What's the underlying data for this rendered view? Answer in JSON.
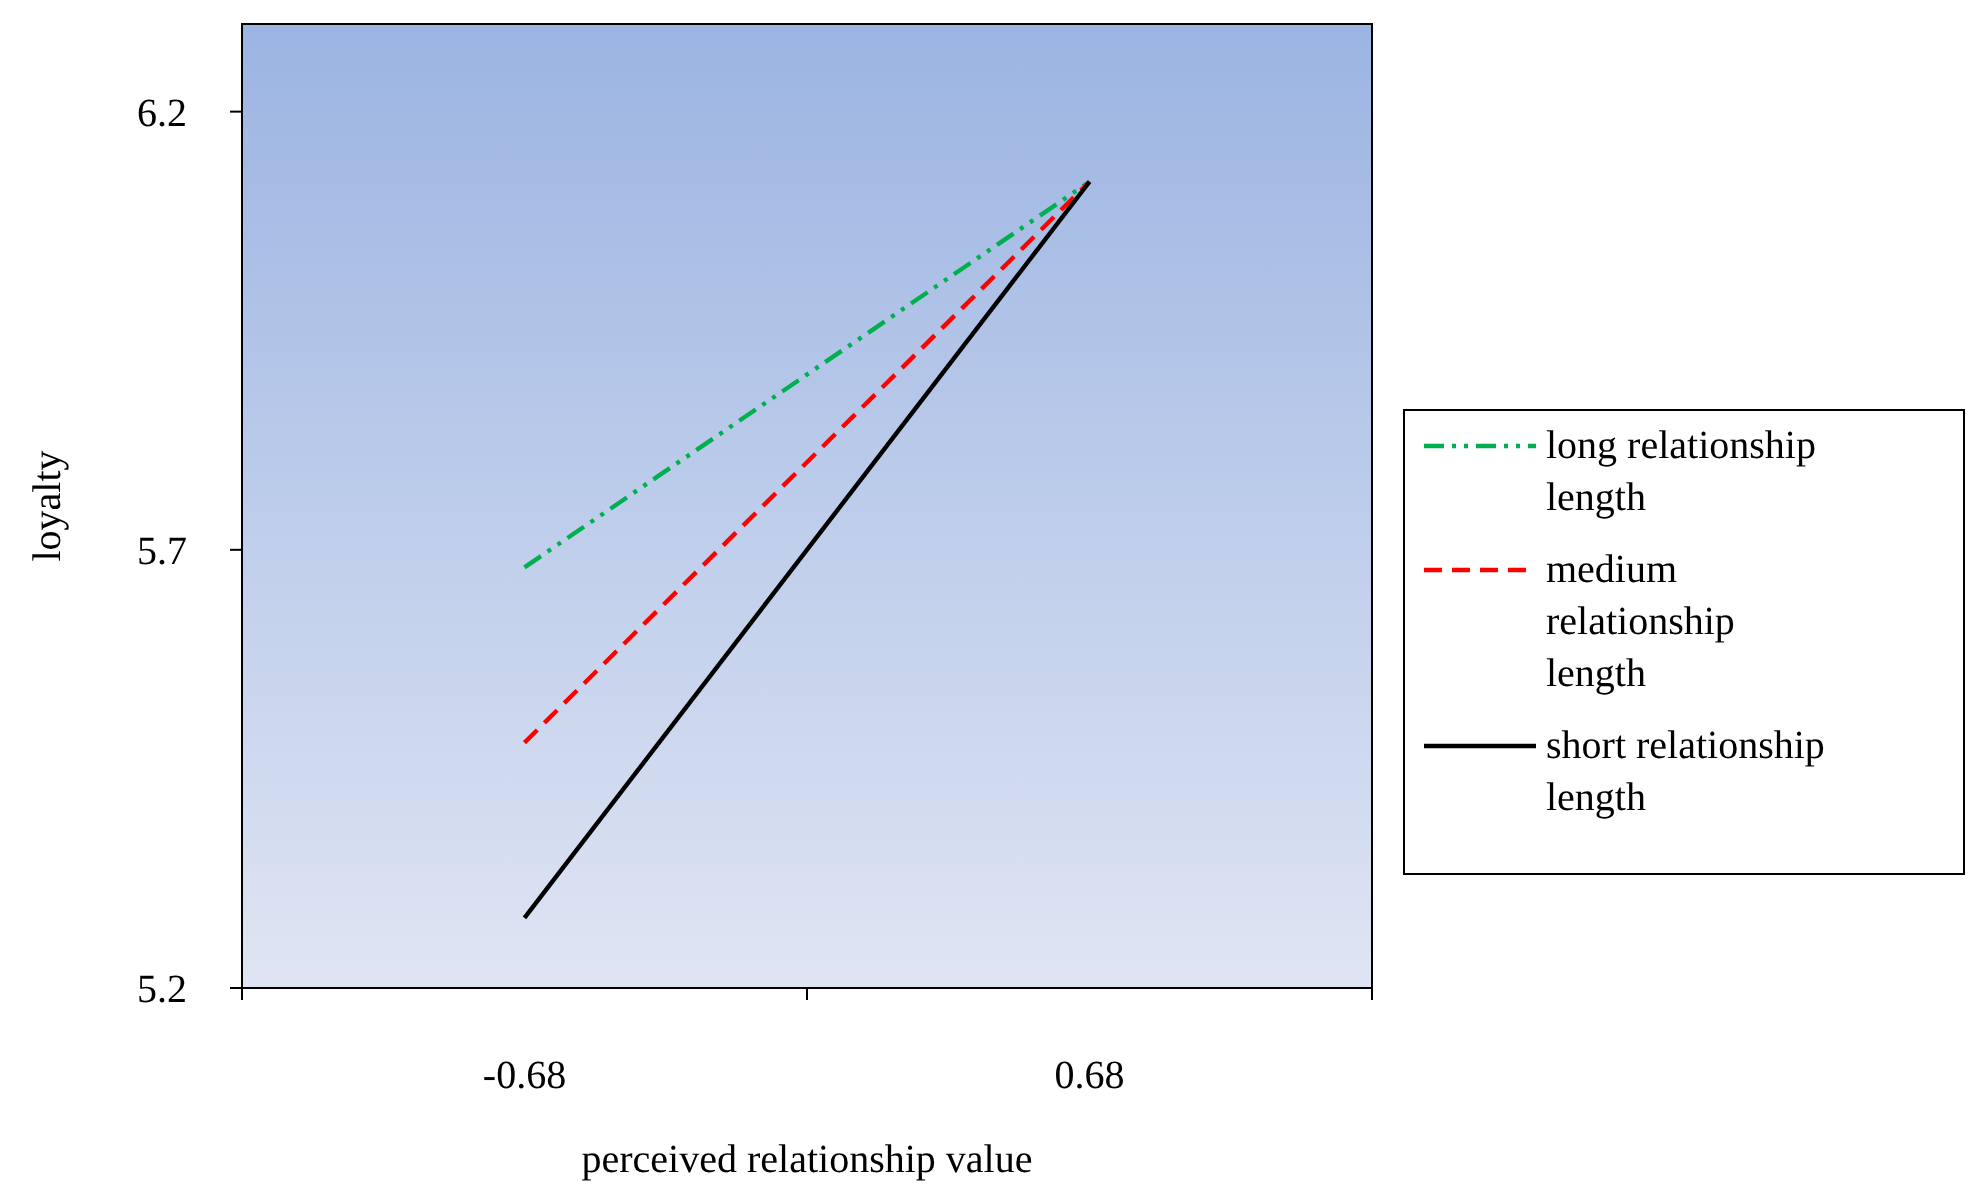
{
  "chart_data": {
    "type": "line",
    "xlabel": "perceived relationship value",
    "ylabel": "loyalty",
    "categories": [
      "-0.68",
      "0.68"
    ],
    "series": [
      {
        "name": "long relationship length",
        "color": "#00b050",
        "values": [
          5.68,
          6.12
        ],
        "line_style": "dashdot"
      },
      {
        "name": "medium relationship length",
        "color": "#ff0000",
        "values": [
          5.48,
          6.12
        ],
        "line_style": "dashed"
      },
      {
        "name": "short relationship length",
        "color": "#000000",
        "values": [
          5.28,
          6.12
        ],
        "line_style": "solid"
      }
    ],
    "ylim": [
      5.2,
      6.3
    ],
    "yticks": [
      5.2,
      5.7,
      6.2
    ],
    "grid": false,
    "legend": "right",
    "marker": "none"
  }
}
